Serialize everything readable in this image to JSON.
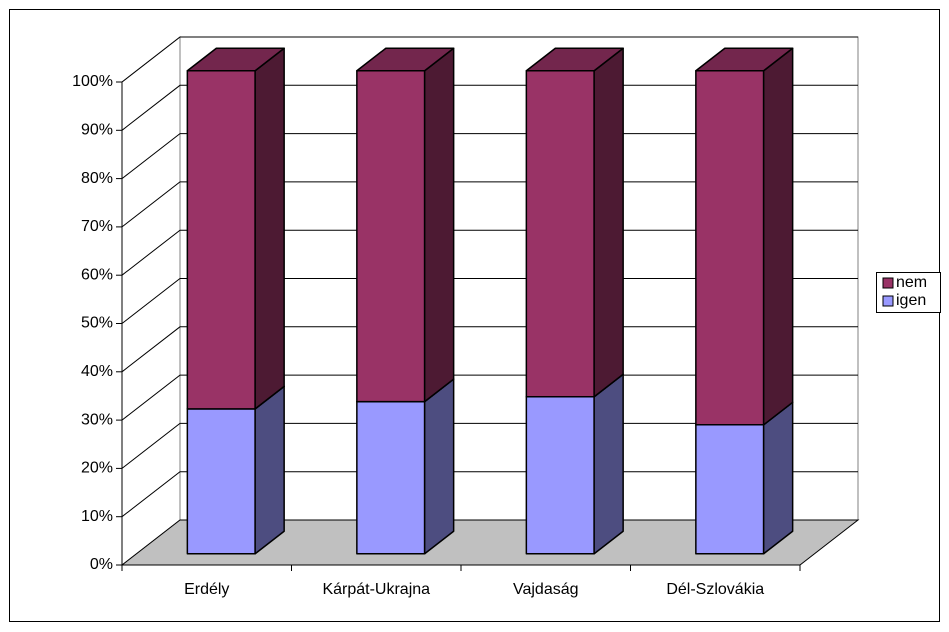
{
  "chart_data": {
    "type": "bar3d_stacked",
    "categories": [
      "Erdély",
      "Kárpát-Ukrajna",
      "Vajdaság",
      "Dél-Szlovákia"
    ],
    "series": [
      {
        "name": "igen",
        "color": "#9999ff",
        "values": [
          30,
          31.5,
          32.5,
          26.7
        ]
      },
      {
        "name": "nem",
        "color": "#993366",
        "values": [
          70,
          68.5,
          67.5,
          73.3
        ]
      }
    ],
    "ylim": [
      0,
      100
    ],
    "yticks": [
      {
        "value": 0,
        "label": "0%"
      },
      {
        "value": 10,
        "label": "10%"
      },
      {
        "value": 20,
        "label": "20%"
      },
      {
        "value": 30,
        "label": "30%"
      },
      {
        "value": 40,
        "label": "40%"
      },
      {
        "value": 50,
        "label": "50%"
      },
      {
        "value": 60,
        "label": "60%"
      },
      {
        "value": 70,
        "label": "70%"
      },
      {
        "value": 80,
        "label": "80%"
      },
      {
        "value": 90,
        "label": "90%"
      },
      {
        "value": 100,
        "label": "100%"
      }
    ],
    "grid": true,
    "legend": "right"
  }
}
